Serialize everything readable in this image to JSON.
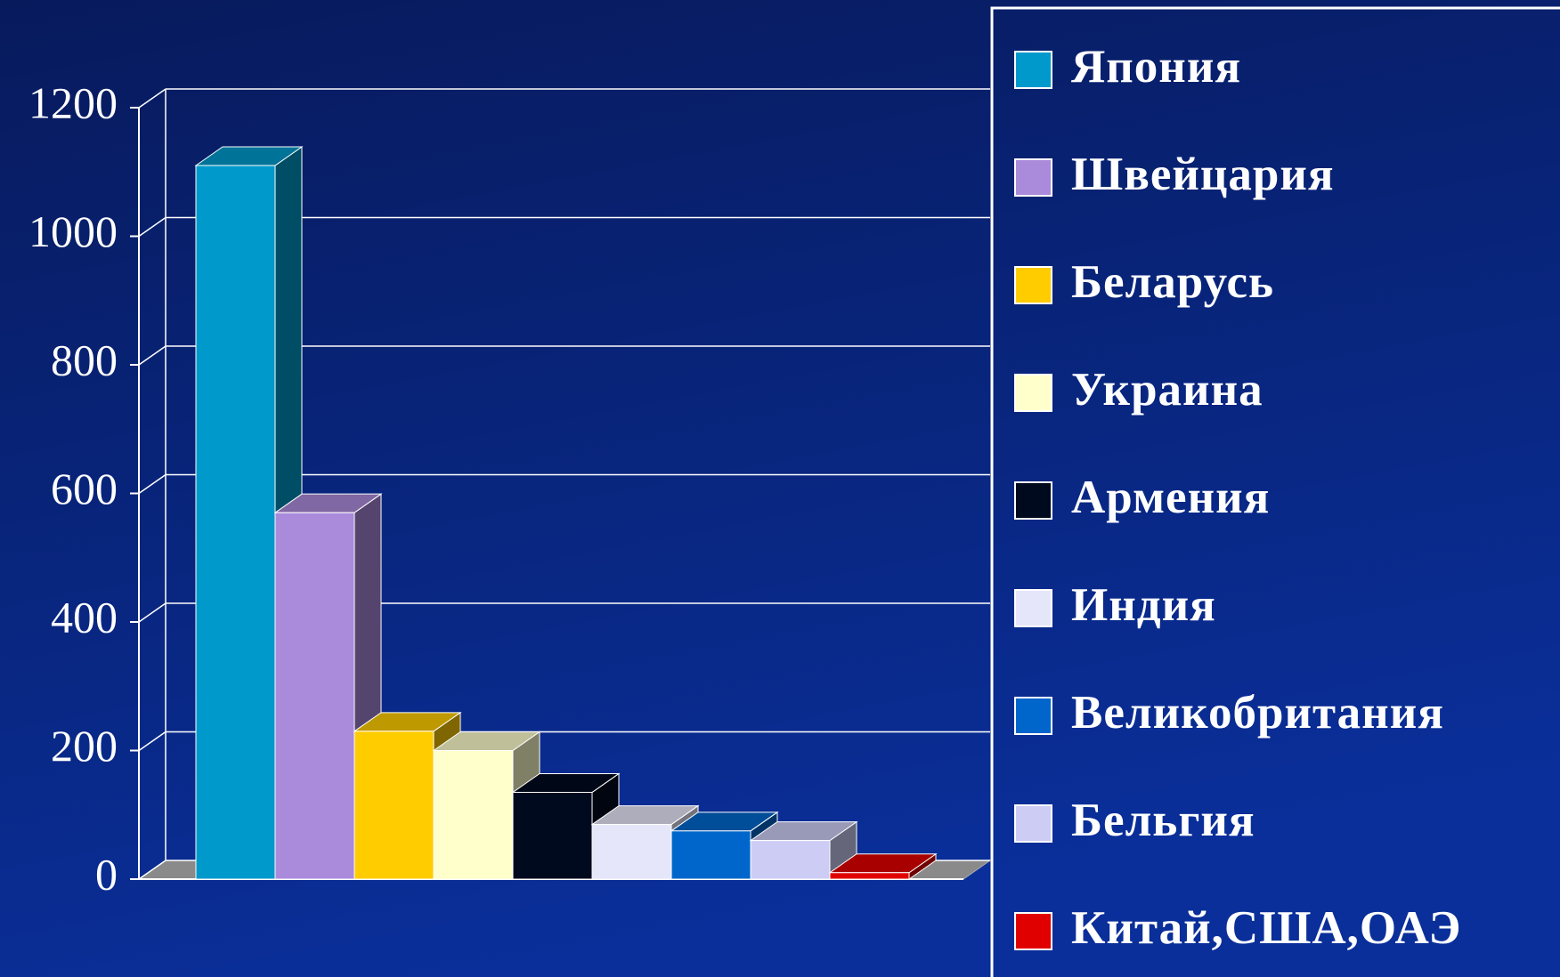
{
  "chart_data": {
    "type": "bar",
    "categories": [
      null
    ],
    "series": [
      {
        "name": "Япония",
        "color": "#0099cc",
        "values": [
          1110
        ]
      },
      {
        "name": "Швейцария",
        "color": "#a98adb",
        "values": [
          570
        ]
      },
      {
        "name": "Беларусь",
        "color": "#ffcc00",
        "values": [
          230
        ]
      },
      {
        "name": "Украина",
        "color": "#ffffcc",
        "values": [
          200
        ]
      },
      {
        "name": "Армения",
        "color": "#000a1e",
        "values": [
          135
        ]
      },
      {
        "name": "Индия",
        "color": "#e6e6fa",
        "values": [
          85
        ]
      },
      {
        "name": "Великобритания",
        "color": "#0066cc",
        "values": [
          75
        ]
      },
      {
        "name": "Бельгия",
        "color": "#ccccf5",
        "values": [
          60
        ]
      },
      {
        "name": "Китай,США,ОАЭ",
        "color": "#e00000",
        "values": [
          10
        ]
      }
    ],
    "ylim": [
      0,
      1200
    ],
    "yticks": [
      0,
      200,
      400,
      600,
      800,
      1000,
      1200
    ],
    "grid": true,
    "legend": "right"
  }
}
